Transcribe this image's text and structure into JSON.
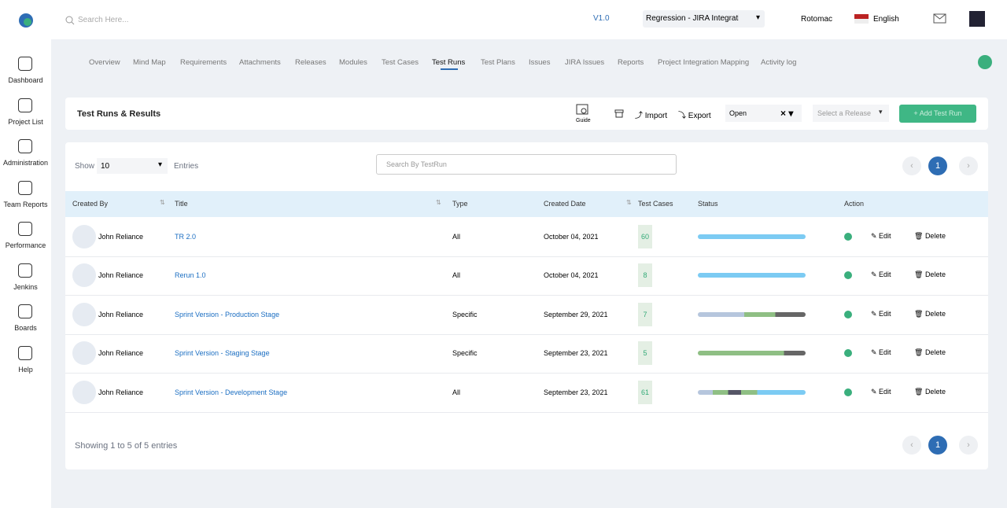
{
  "header": {
    "search_placeholder": "Search Here...",
    "version": "V1.0",
    "project": "Regression - JIRA Integration",
    "user": "Rotomac",
    "language": "English"
  },
  "sidebar": [
    "Dashboard",
    "Project List",
    "Administration",
    "Team Reports",
    "Performance",
    "Jenkins",
    "Boards",
    "Help"
  ],
  "tabs": [
    "Overview",
    "Mind Map",
    "Requirements",
    "Attachments",
    "Releases",
    "Modules",
    "Test Cases",
    "Test Runs",
    "Test Plans",
    "Issues",
    "JIRA Issues",
    "Reports",
    "Project Integration Mapping",
    "Activity log"
  ],
  "active_tab": 7,
  "toolbar": {
    "title": "Test Runs & Results",
    "guide": "Guide",
    "import": "Import",
    "export": "Export",
    "status_filter": "Open",
    "release_placeholder": "Select a Release",
    "add_button": "Add Test Run"
  },
  "table": {
    "show_label": "Show",
    "page_size": "10",
    "entries_label": "Entries",
    "search_placeholder": "Search By TestRun",
    "columns": [
      "Created By",
      "Title",
      "Type",
      "Created Date",
      "Test Cases",
      "Status",
      "Action"
    ],
    "rows": [
      [
        "John Reliance",
        "TR 2.0",
        "All",
        "October 04, 2021",
        "60"
      ],
      [
        "John Reliance",
        "Rerun 1.0",
        "All",
        "October 04, 2021",
        "8"
      ],
      [
        "John Reliance",
        "Sprint Version - Production Stage",
        "Specific",
        "September 29, 2021",
        "7"
      ],
      [
        "John Reliance",
        "Sprint Version - Staging Stage",
        "Specific",
        "September 23, 2021",
        "5"
      ],
      [
        "John Reliance",
        "Sprint Version - Development Stage",
        "All",
        "September 23, 2021",
        "61"
      ]
    ],
    "edit": "Edit",
    "delete": "Delete",
    "footer": "Showing 1 to 5 of 5 entries",
    "page": "1"
  }
}
